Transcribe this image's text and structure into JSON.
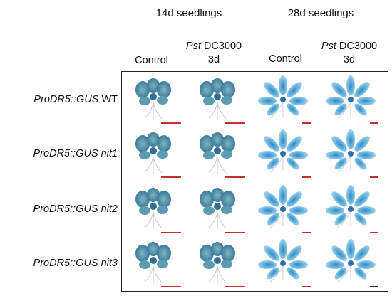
{
  "groups": [
    {
      "label": "14d seedlings"
    },
    {
      "label": "28d seedlings"
    }
  ],
  "columns": [
    {
      "line1": "Control",
      "line2": ""
    },
    {
      "line1_italic": "Pst",
      "line1_rest": " DC3000",
      "line2": "3d"
    },
    {
      "line1": "Control",
      "line2": ""
    },
    {
      "line1_italic": "Pst",
      "line1_rest": " DC3000",
      "line2": "3d"
    }
  ],
  "rows": [
    {
      "italic": "ProDR5::GUS",
      "rest": " WT"
    },
    {
      "italic": "ProDR5::GUS nit1",
      "rest": ""
    },
    {
      "italic": "ProDR5::GUS nit2",
      "rest": ""
    },
    {
      "italic": "ProDR5::GUS nit3",
      "rest": ""
    }
  ],
  "colors": {
    "stain_14d_dark": "#2f6e96",
    "stain_14d_light": "#7fb6bf",
    "stain_28d": "#4fb0dc",
    "stain_28d_pale": "#a9d8ee",
    "scale_bar_red": "#c0332f",
    "scale_bar_dark": "#222222"
  },
  "scale_bar_colors": [
    "red",
    "red",
    "red",
    "red",
    "red",
    "red",
    "red",
    "red",
    "red",
    "red",
    "red",
    "red",
    "red",
    "red",
    "red",
    "dark"
  ]
}
